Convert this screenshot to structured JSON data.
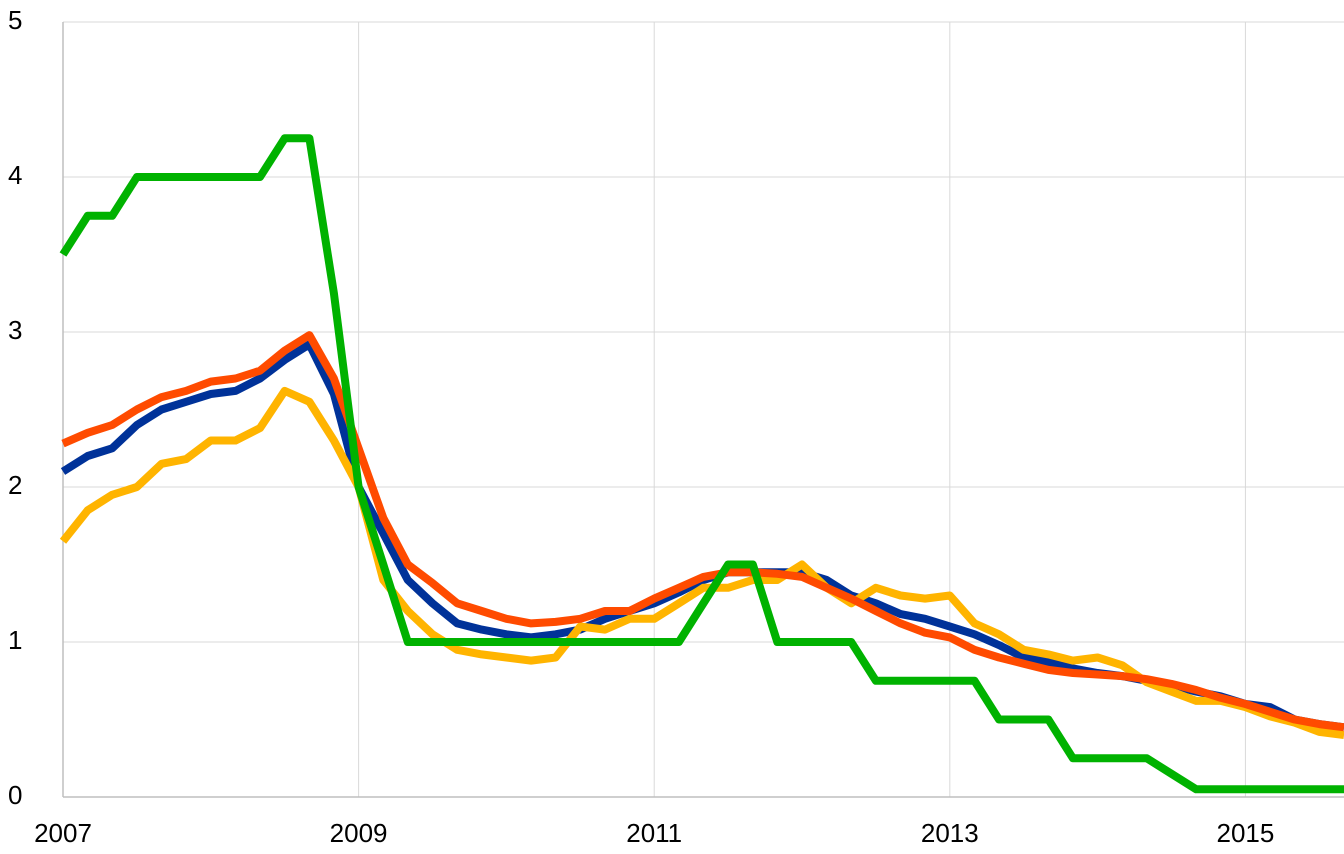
{
  "chart_data": {
    "type": "line",
    "x": [
      2007,
      2007.167,
      2007.333,
      2007.5,
      2007.667,
      2007.833,
      2008,
      2008.167,
      2008.333,
      2008.5,
      2008.667,
      2008.833,
      2009,
      2009.167,
      2009.333,
      2009.5,
      2009.667,
      2009.833,
      2010,
      2010.167,
      2010.333,
      2010.5,
      2010.667,
      2010.833,
      2011,
      2011.167,
      2011.333,
      2011.5,
      2011.667,
      2011.833,
      2012,
      2012.167,
      2012.333,
      2012.5,
      2012.667,
      2012.833,
      2013,
      2013.167,
      2013.333,
      2013.5,
      2013.667,
      2013.833,
      2014,
      2014.167,
      2014.333,
      2014.5,
      2014.667,
      2014.833,
      2015,
      2015.167,
      2015.333,
      2015.5,
      2015.667
    ],
    "series": [
      {
        "color": "#003299",
        "values": [
          2.1,
          2.2,
          2.25,
          2.4,
          2.5,
          2.55,
          2.6,
          2.62,
          2.7,
          2.82,
          2.92,
          2.6,
          2.0,
          1.7,
          1.4,
          1.25,
          1.12,
          1.08,
          1.05,
          1.03,
          1.05,
          1.08,
          1.15,
          1.2,
          1.25,
          1.32,
          1.4,
          1.45,
          1.45,
          1.45,
          1.45,
          1.4,
          1.3,
          1.25,
          1.18,
          1.15,
          1.1,
          1.05,
          0.98,
          0.9,
          0.87,
          0.83,
          0.8,
          0.78,
          0.75,
          0.72,
          0.68,
          0.65,
          0.6,
          0.58,
          0.5,
          0.47,
          0.45
        ]
      },
      {
        "color": "#ffb400",
        "values": [
          1.65,
          1.85,
          1.95,
          2.0,
          2.15,
          2.18,
          2.3,
          2.3,
          2.38,
          2.62,
          2.55,
          2.3,
          2.0,
          1.4,
          1.2,
          1.05,
          0.95,
          0.92,
          0.9,
          0.88,
          0.9,
          1.1,
          1.08,
          1.15,
          1.15,
          1.25,
          1.35,
          1.35,
          1.4,
          1.4,
          1.5,
          1.35,
          1.25,
          1.35,
          1.3,
          1.28,
          1.3,
          1.12,
          1.05,
          0.95,
          0.92,
          0.88,
          0.9,
          0.85,
          0.74,
          0.68,
          0.62,
          0.62,
          0.58,
          0.52,
          0.48,
          0.42,
          0.4
        ]
      },
      {
        "color": "#ff4b00",
        "values": [
          2.28,
          2.35,
          2.4,
          2.5,
          2.58,
          2.62,
          2.68,
          2.7,
          2.75,
          2.88,
          2.98,
          2.7,
          2.25,
          1.8,
          1.5,
          1.38,
          1.25,
          1.2,
          1.15,
          1.12,
          1.13,
          1.15,
          1.2,
          1.2,
          1.28,
          1.35,
          1.42,
          1.45,
          1.45,
          1.44,
          1.42,
          1.35,
          1.28,
          1.2,
          1.12,
          1.06,
          1.03,
          0.95,
          0.9,
          0.86,
          0.82,
          0.8,
          0.79,
          0.78,
          0.76,
          0.73,
          0.69,
          0.64,
          0.6,
          0.55,
          0.5,
          0.47,
          0.45
        ]
      },
      {
        "color": "#00b200",
        "values": [
          3.5,
          3.75,
          3.75,
          4,
          4,
          4,
          4,
          4,
          4,
          4.25,
          4.25,
          3.25,
          2.0,
          1.5,
          1.0,
          1,
          1,
          1,
          1,
          1,
          1,
          1,
          1,
          1,
          1,
          1,
          1.25,
          1.5,
          1.5,
          1.0,
          1,
          1,
          1,
          0.75,
          0.75,
          0.75,
          0.75,
          0.75,
          0.5,
          0.5,
          0.5,
          0.25,
          0.25,
          0.25,
          0.25,
          0.15,
          0.05,
          0.05,
          0.05,
          0.05,
          0.05,
          0.05,
          0.05
        ]
      }
    ],
    "xlim": [
      2007,
      2015.667
    ],
    "xticks": [
      2007,
      2009,
      2011,
      2013,
      2015
    ],
    "ylim": [
      0,
      5
    ],
    "yticks": [
      0,
      1,
      2,
      3,
      4,
      5
    ],
    "grid": true
  }
}
